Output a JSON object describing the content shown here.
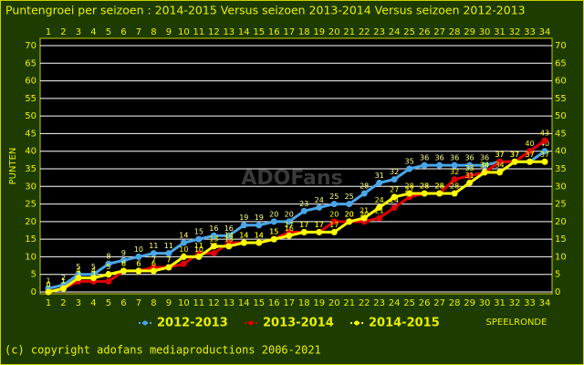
{
  "chart_data": {
    "type": "line",
    "title": "Puntengroei per seizoen : 2014-2015 Versus seizoen 2013-2014 Versus seizoen 2012-2013",
    "y_label": "PUNTEN",
    "x_label": "SPEELRONDE",
    "watermark": "ADOFans",
    "footer": "(c) copyright adofans mediaproductions 2006-2021",
    "categories": [
      1,
      2,
      3,
      4,
      5,
      6,
      7,
      8,
      9,
      10,
      11,
      12,
      13,
      14,
      15,
      16,
      17,
      18,
      19,
      20,
      21,
      22,
      23,
      24,
      25,
      26,
      27,
      28,
      29,
      30,
      31,
      32,
      33,
      34
    ],
    "ylim": [
      0,
      70
    ],
    "yticks": [
      0,
      5,
      10,
      15,
      20,
      25,
      30,
      35,
      40,
      45,
      50,
      55,
      60,
      65,
      70
    ],
    "grid": true,
    "legend": "bottom",
    "series": [
      {
        "name": "2012-2013",
        "color": "#4aa6e8",
        "values": [
          1,
          2,
          5,
          5,
          8,
          9,
          10,
          11,
          11,
          14,
          15,
          16,
          16,
          19,
          19,
          20,
          20,
          23,
          24,
          25,
          25,
          28,
          31,
          32,
          35,
          36,
          36,
          36,
          36,
          36,
          37,
          37,
          37,
          40
        ]
      },
      {
        "name": "2013-2014",
        "color": "#e00000",
        "values": [
          0,
          1,
          3,
          3,
          3,
          6,
          6,
          7,
          7,
          8,
          11,
          11,
          14,
          14,
          14,
          15,
          17,
          17,
          17,
          20,
          20,
          20,
          21,
          24,
          27,
          28,
          28,
          32,
          33,
          34,
          37,
          37,
          40,
          43
        ]
      },
      {
        "name": "2014-2015",
        "color": "#ffff00",
        "values": [
          0,
          1,
          4,
          4,
          5,
          6,
          6,
          6,
          7,
          10,
          10,
          13,
          13,
          14,
          14,
          15,
          16,
          17,
          17,
          17,
          20,
          21,
          24,
          27,
          28,
          28,
          28,
          28,
          31,
          34,
          34,
          37,
          37,
          37
        ]
      }
    ]
  }
}
